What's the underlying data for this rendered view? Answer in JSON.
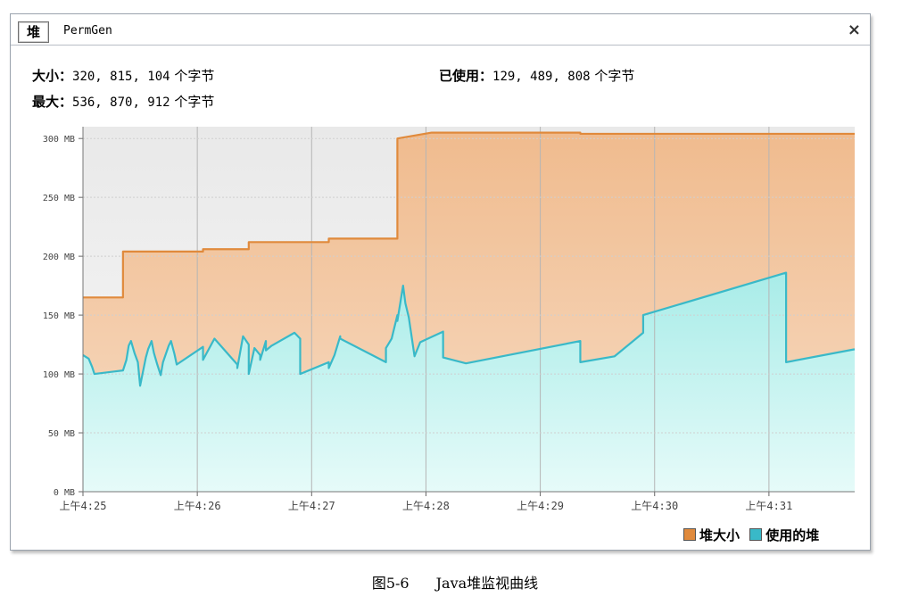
{
  "tabs": [
    {
      "label": "堆"
    },
    {
      "label": "PermGen"
    }
  ],
  "close_label": "×",
  "stats": {
    "size_label": "大小：",
    "size_value": "320, 815, 104",
    "unit": "个字节",
    "max_label": "最大：",
    "max_value": "536, 870, 912",
    "used_label": "已使用：",
    "used_value": "129, 489, 808"
  },
  "colors": {
    "heap_size": "#e08a3c",
    "heap_used": "#39b9c8",
    "heap_fill": "#f4cfae",
    "used_fill": "#c9f3f0"
  },
  "legend": {
    "size": "堆大小",
    "used": "使用的堆"
  },
  "caption": {
    "number": "图5-6",
    "text": "Java堆监视曲线"
  },
  "chart_data": {
    "type": "area",
    "y_unit": "MB",
    "ylim": [
      0,
      310
    ],
    "yticks": [
      0,
      50,
      100,
      150,
      200,
      250,
      300
    ],
    "ytick_labels": [
      "0 MB",
      "50 MB",
      "100 MB",
      "150 MB",
      "200 MB",
      "250 MB",
      "300 MB"
    ],
    "xlim": [
      4.25,
      4.3175
    ],
    "xticks": [
      4.25,
      4.26,
      4.27,
      4.28,
      4.29,
      4.3,
      4.31
    ],
    "xtick_labels": [
      "上午4:25",
      "上午4:26",
      "上午4:27",
      "上午4:28",
      "上午4:29",
      "上午4:30",
      "上午4:31"
    ],
    "grid": true,
    "legend_position": "bottom-right",
    "series": [
      {
        "name": "堆大小",
        "x": [
          4.25,
          4.2535,
          4.2535,
          4.2605,
          4.2605,
          4.2645,
          4.2645,
          4.2715,
          4.2715,
          4.2775,
          4.2775,
          4.2805,
          4.2805,
          4.2935,
          4.2935,
          4.3175
        ],
        "values": [
          165,
          165,
          204,
          204,
          206,
          206,
          212,
          212,
          215,
          215,
          300,
          305,
          305,
          305,
          304,
          304
        ]
      },
      {
        "name": "使用的堆",
        "x": [
          4.25,
          4.2505,
          4.2508,
          4.251,
          4.2535,
          4.2538,
          4.254,
          4.2542,
          4.2545,
          4.2548,
          4.255,
          4.2555,
          4.2557,
          4.256,
          4.2562,
          4.2565,
          4.2568,
          4.257,
          4.2575,
          4.2577,
          4.258,
          4.2582,
          4.2605,
          4.2605,
          4.2615,
          4.2635,
          4.2635,
          4.264,
          4.2645,
          4.2645,
          4.265,
          4.2655,
          4.2655,
          4.266,
          4.266,
          4.2665,
          4.2685,
          4.269,
          4.269,
          4.2715,
          4.2715,
          4.272,
          4.2725,
          4.2725,
          4.2765,
          4.2765,
          4.277,
          4.2775,
          4.2775,
          4.278,
          4.2782,
          4.2785,
          4.279,
          4.2795,
          4.2815,
          4.2815,
          4.2835,
          4.2935,
          4.2935,
          4.2965,
          4.299,
          4.299,
          4.3115,
          4.3115,
          4.3175
        ],
        "values": [
          116,
          113,
          106,
          100,
          103,
          112,
          124,
          128,
          118,
          110,
          90,
          114,
          121,
          128,
          118,
          108,
          99,
          110,
          124,
          128,
          117,
          108,
          123,
          112,
          130,
          108,
          105,
          132,
          125,
          100,
          122,
          116,
          112,
          128,
          120,
          124,
          135,
          130,
          100,
          110,
          105,
          116,
          132,
          130,
          110,
          122,
          130,
          150,
          145,
          175,
          160,
          148,
          115,
          127,
          136,
          114,
          109,
          128,
          110,
          115,
          135,
          150,
          186,
          110,
          121
        ]
      }
    ]
  }
}
